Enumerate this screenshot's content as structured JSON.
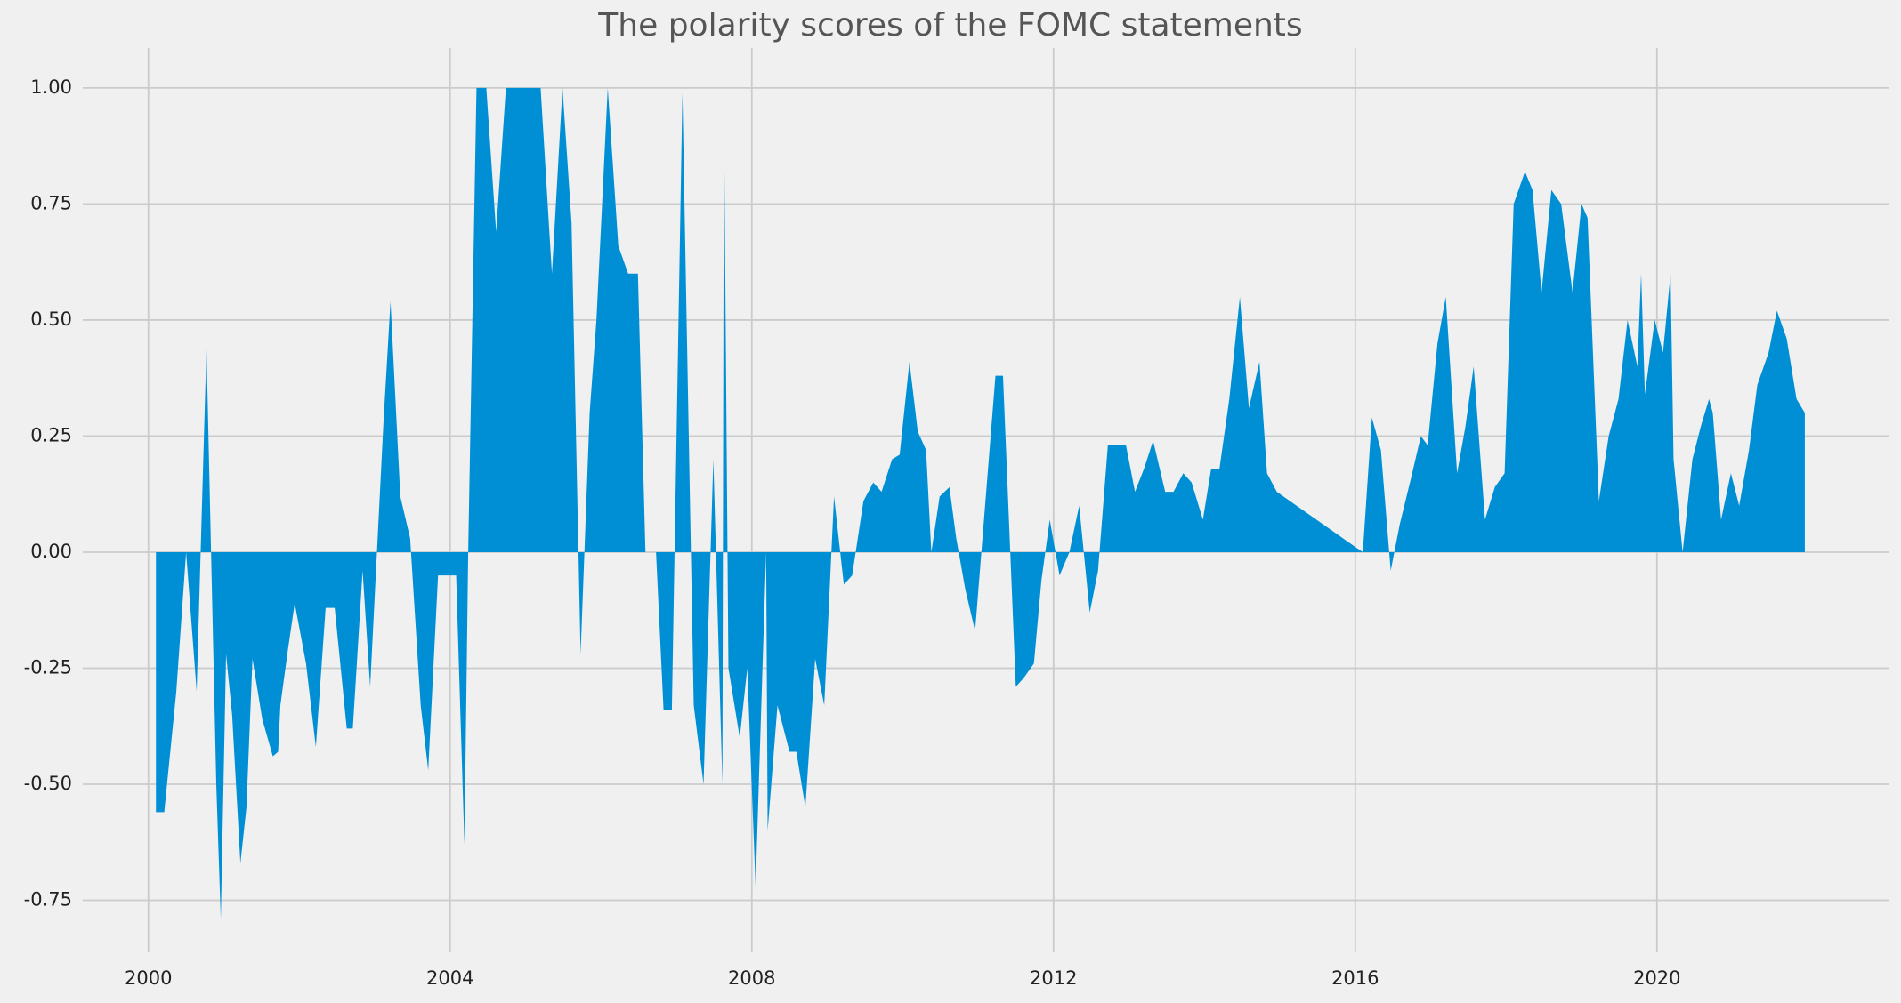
{
  "chart_data": {
    "type": "area",
    "title": "The polarity scores of the FOMC statements",
    "color": "#008fd5",
    "grid": true,
    "xlim": [
      1999.13,
      2023.07
    ],
    "ylim": [
      -0.862,
      1.086
    ],
    "xticks": [
      2000,
      2004,
      2008,
      2012,
      2016,
      2020
    ],
    "yticks": [
      -0.75,
      {
        "value": -0.5,
        "label": "-0.50"
      },
      -0.25,
      {
        "value": 0,
        "label": "0.00"
      },
      0.25,
      {
        "value": 0.5,
        "label": "0.50"
      },
      0.75,
      {
        "value": 1,
        "label": "1.00"
      }
    ],
    "x": [
      2000.1,
      2000.21,
      2000.37,
      2000.5,
      2000.64,
      2000.77,
      2000.9,
      2000.96,
      2001.03,
      2001.11,
      2001.22,
      2001.3,
      2001.38,
      2001.51,
      2001.65,
      2001.72,
      2001.75,
      2001.85,
      2001.94,
      2002.09,
      2002.22,
      2002.35,
      2002.47,
      2002.63,
      2002.71,
      2002.84,
      2002.94,
      2003.12,
      2003.21,
      2003.34,
      2003.47,
      2003.61,
      2003.71,
      2003.84,
      2004.08,
      2004.19,
      2004.24,
      2004.35,
      2004.48,
      2004.61,
      2004.74,
      2005.2,
      2005.35,
      2005.49,
      2005.61,
      2005.73,
      2005.85,
      2005.94,
      2006.09,
      2006.23,
      2006.36,
      2006.49,
      2006.59,
      2006.73,
      2006.83,
      2006.94,
      2007.08,
      2007.23,
      2007.36,
      2007.49,
      2007.61,
      2007.63,
      2007.69,
      2007.84,
      2007.94,
      2008.05,
      2008.19,
      2008.21,
      2008.34,
      2008.5,
      2008.59,
      2008.71,
      2008.84,
      2008.96,
      2009.09,
      2009.22,
      2009.33,
      2009.48,
      2009.61,
      2009.72,
      2009.86,
      2009.96,
      2010.09,
      2010.2,
      2010.31,
      2010.38,
      2010.49,
      2010.62,
      2010.71,
      2010.83,
      2010.96,
      2011.23,
      2011.33,
      2011.5,
      2011.61,
      2011.74,
      2011.84,
      2011.95,
      2012.08,
      2012.21,
      2012.34,
      2012.48,
      2012.59,
      2012.72,
      2012.96,
      2013.08,
      2013.2,
      2013.32,
      2013.48,
      2013.59,
      2013.72,
      2013.83,
      2013.98,
      2014.09,
      2014.2,
      2014.33,
      2014.47,
      2014.59,
      2014.73,
      2014.83,
      2014.96,
      2016.1,
      2016.22,
      2016.34,
      2016.47,
      2016.59,
      2016.74,
      2016.87,
      2016.96,
      2017.09,
      2017.2,
      2017.35,
      2017.46,
      2017.57,
      2017.72,
      2017.85,
      2017.98,
      2018.1,
      2018.25,
      2018.35,
      2018.47,
      2018.6,
      2018.73,
      2018.88,
      2019.0,
      2019.08,
      2019.23,
      2019.36,
      2019.49,
      2019.61,
      2019.74,
      2019.79,
      2019.84,
      2019.97,
      2020.08,
      2020.18,
      2020.22,
      2020.34,
      2020.47,
      2020.58,
      2020.69,
      2020.74,
      2020.85,
      2020.98,
      2021.09,
      2021.22,
      2021.33,
      2021.48,
      2021.59,
      2021.72,
      2021.85,
      2021.96
    ],
    "values": [
      -0.56,
      -0.56,
      -0.3,
      0.0,
      -0.3,
      0.44,
      -0.5,
      -0.79,
      -0.22,
      -0.35,
      -0.67,
      -0.55,
      -0.23,
      -0.36,
      -0.44,
      -0.43,
      -0.33,
      -0.21,
      -0.11,
      -0.24,
      -0.42,
      -0.12,
      -0.12,
      -0.38,
      -0.38,
      -0.04,
      -0.29,
      0.29,
      0.54,
      0.12,
      0.03,
      -0.33,
      -0.47,
      -0.05,
      -0.05,
      -0.63,
      0.0,
      1.0,
      1.0,
      0.69,
      1.0,
      1.0,
      0.6,
      1.0,
      0.71,
      -0.22,
      0.3,
      0.5,
      1.0,
      0.66,
      0.6,
      0.6,
      0.0,
      0.0,
      -0.34,
      -0.34,
      0.99,
      -0.33,
      -0.5,
      0.2,
      -0.5,
      0.97,
      -0.25,
      -0.4,
      -0.25,
      -0.72,
      0.0,
      -0.6,
      -0.33,
      -0.43,
      -0.43,
      -0.55,
      -0.23,
      -0.33,
      0.12,
      -0.07,
      -0.05,
      0.11,
      0.15,
      0.13,
      0.2,
      0.21,
      0.41,
      0.26,
      0.22,
      0.0,
      0.12,
      0.14,
      0.03,
      -0.08,
      -0.17,
      0.38,
      0.38,
      -0.29,
      -0.27,
      -0.24,
      -0.06,
      0.07,
      -0.05,
      0.0,
      0.1,
      -0.13,
      -0.04,
      0.23,
      0.23,
      0.13,
      0.18,
      0.24,
      0.13,
      0.13,
      0.17,
      0.15,
      0.07,
      0.18,
      0.18,
      0.33,
      0.55,
      0.31,
      0.41,
      0.17,
      0.13,
      0.0,
      0.29,
      0.22,
      -0.04,
      0.06,
      0.16,
      0.25,
      0.23,
      0.45,
      0.55,
      0.17,
      0.27,
      0.4,
      0.07,
      0.14,
      0.17,
      0.75,
      0.82,
      0.78,
      0.56,
      0.78,
      0.75,
      0.56,
      0.75,
      0.72,
      0.11,
      0.25,
      0.33,
      0.5,
      0.4,
      0.6,
      0.34,
      0.5,
      0.43,
      0.6,
      0.2,
      0.0,
      0.2,
      0.27,
      0.33,
      0.3,
      0.07,
      0.17,
      0.1,
      0.22,
      0.36,
      0.43,
      0.52,
      0.46,
      0.33,
      0.3
    ]
  }
}
